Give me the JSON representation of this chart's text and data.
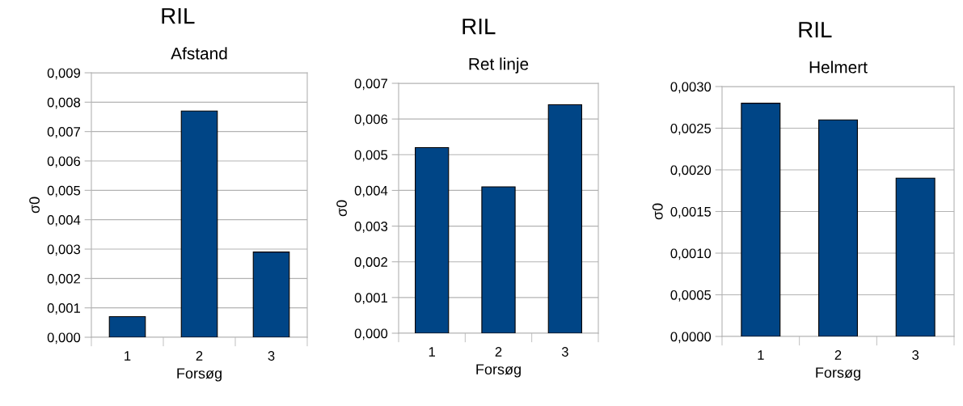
{
  "chart_data": [
    {
      "type": "bar",
      "title": "RIL",
      "subtitle": "Afstand",
      "xlabel": "Forsøg",
      "ylabel": "σ0",
      "categories": [
        "1",
        "2",
        "3"
      ],
      "values": [
        0.0007,
        0.0077,
        0.0029
      ],
      "color": "#004586",
      "ylim": [
        0,
        0.009
      ],
      "yticks": [
        {
          "value": 0,
          "label": "0,000"
        },
        {
          "value": 0.001,
          "label": "0,001"
        },
        {
          "value": 0.002,
          "label": "0,002"
        },
        {
          "value": 0.003,
          "label": "0,003"
        },
        {
          "value": 0.004,
          "label": "0,004"
        },
        {
          "value": 0.005,
          "label": "0,005"
        },
        {
          "value": 0.006,
          "label": "0,006"
        },
        {
          "value": 0.007,
          "label": "0,007"
        },
        {
          "value": 0.008,
          "label": "0,008"
        },
        {
          "value": 0.009,
          "label": "0,009"
        }
      ],
      "grid": "y",
      "legend": false
    },
    {
      "type": "bar",
      "title": "RIL",
      "subtitle": "Ret linje",
      "xlabel": "Forsøg",
      "ylabel": "σ0",
      "categories": [
        "1",
        "2",
        "3"
      ],
      "values": [
        0.0052,
        0.0041,
        0.0064
      ],
      "color": "#004586",
      "ylim": [
        0,
        0.007
      ],
      "yticks": [
        {
          "value": 0,
          "label": "0,000"
        },
        {
          "value": 0.001,
          "label": "0,001"
        },
        {
          "value": 0.002,
          "label": "0,002"
        },
        {
          "value": 0.003,
          "label": "0,003"
        },
        {
          "value": 0.004,
          "label": "0,004"
        },
        {
          "value": 0.005,
          "label": "0,005"
        },
        {
          "value": 0.006,
          "label": "0,006"
        },
        {
          "value": 0.007,
          "label": "0,007"
        }
      ],
      "grid": "y",
      "legend": false
    },
    {
      "type": "bar",
      "title": "RIL",
      "subtitle": "Helmert",
      "xlabel": "Forsøg",
      "ylabel": "σ0",
      "categories": [
        "1",
        "2",
        "3"
      ],
      "values": [
        0.0028,
        0.0026,
        0.0019
      ],
      "color": "#004586",
      "ylim": [
        0,
        0.003
      ],
      "yticks": [
        {
          "value": 0,
          "label": "0,0000"
        },
        {
          "value": 0.0005,
          "label": "0,0005"
        },
        {
          "value": 0.001,
          "label": "0,0010"
        },
        {
          "value": 0.0015,
          "label": "0,0015"
        },
        {
          "value": 0.002,
          "label": "0,0020"
        },
        {
          "value": 0.0025,
          "label": "0,0025"
        },
        {
          "value": 0.003,
          "label": "0,0030"
        }
      ],
      "grid": "y",
      "legend": false
    }
  ]
}
